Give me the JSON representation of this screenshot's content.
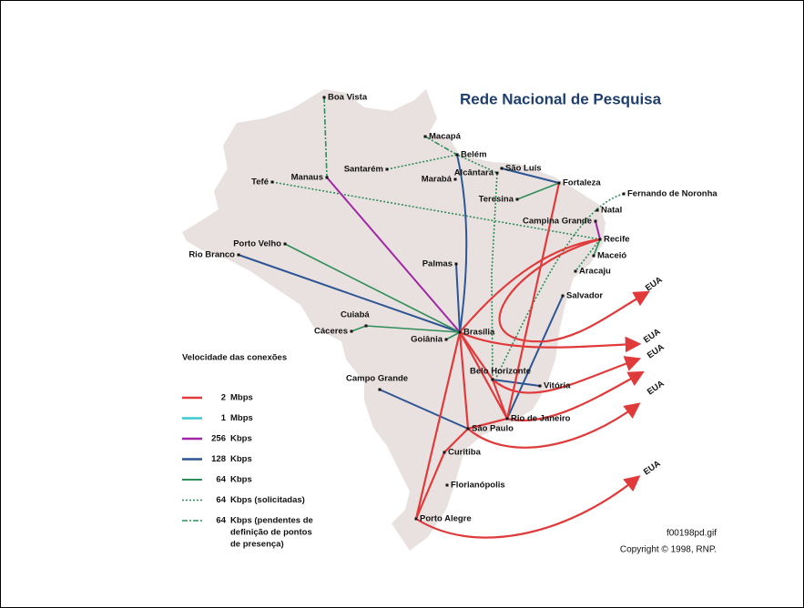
{
  "title": "Rede Nacional de Pesquisa",
  "cities": [
    "Boa Vista",
    "Macapá",
    "Belém",
    "Manaus",
    "Santarém",
    "Alcântara",
    "São Luís",
    "Fortaleza",
    "Tefé",
    "Marabá",
    "Teresina",
    "Fernando de Noronha",
    "Natal",
    "Campina Grande",
    "Recife",
    "Maceió",
    "Porto Velho",
    "Rio Branco",
    "Aracaju",
    "Palmas",
    "Salvador",
    "Cuiabá",
    "Cáceres",
    "Brasília",
    "Goiânia",
    "Belo Horizonte",
    "Vitória",
    "Campo Grande",
    "Rio de Janeiro",
    "São Paulo",
    "Curitiba",
    "Florianópolis",
    "Porto Alegre"
  ],
  "destinations": [
    "EUA",
    "EUA",
    "EUA",
    "EUA",
    "EUA"
  ],
  "legend": {
    "title": "Velocidade das conexões",
    "items": [
      {
        "speed": "2",
        "unit": "Mbps"
      },
      {
        "speed": "1",
        "unit": "Mbps"
      },
      {
        "speed": "256",
        "unit": "Kbps"
      },
      {
        "speed": "128",
        "unit": "Kbps"
      },
      {
        "speed": "64",
        "unit": "Kbps"
      },
      {
        "speed": "64",
        "unit": "Kbps (solicitadas)"
      },
      {
        "speed": "64",
        "unit": "Kbps (pendentes de",
        "more": [
          "definição de pontos",
          "de presença)"
        ]
      }
    ]
  },
  "filename": "f00198pd.gif",
  "copyright": "Copyright © 1998, RNP."
}
